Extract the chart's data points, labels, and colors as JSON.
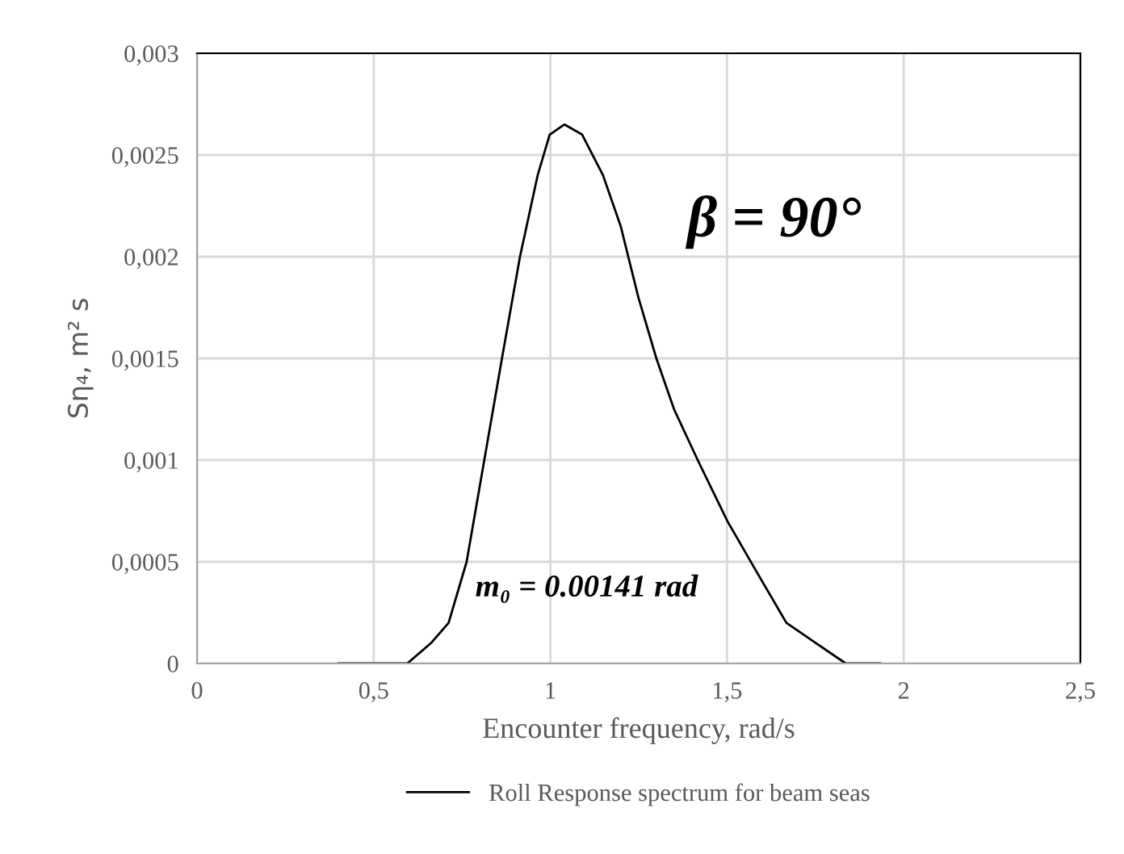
{
  "chart_data": {
    "type": "line",
    "xlabel": "Encounter frequency, rad/s",
    "ylabel": "Sη₄, m² s",
    "annotations": [
      "β = 90°",
      "m₀ = 0.00141 rad"
    ],
    "x": [
      0.4,
      0.595,
      0.662,
      0.712,
      0.763,
      0.813,
      0.863,
      0.914,
      0.964,
      0.998,
      1.04,
      1.09,
      1.149,
      1.199,
      1.249,
      1.3,
      1.35,
      1.417,
      1.501,
      1.584,
      1.668,
      1.752,
      1.836,
      1.933
    ],
    "series": [
      {
        "name": "Roll Response spectrum for beam seas",
        "color": "#000000",
        "values": [
          0,
          0,
          0.0001,
          0.0002,
          0.0005,
          0.001,
          0.0015,
          0.002,
          0.0024,
          0.0026,
          0.00265,
          0.0026,
          0.0024,
          0.00215,
          0.0018,
          0.0015,
          0.00125,
          0.001,
          0.0007,
          0.00045,
          0.0002,
          0.0001,
          0,
          0
        ]
      }
    ],
    "xlim": [
      0,
      2.5
    ],
    "xticks": [
      0,
      {
        "value": 0.5,
        "label": "0,5"
      },
      1,
      {
        "value": 1.5,
        "label": "1,5"
      },
      2,
      {
        "value": 2.5,
        "label": "2,5"
      }
    ],
    "ylim": [
      0,
      0.003
    ],
    "yticks": [
      0,
      {
        "value": 0.0005,
        "label": "0,0005"
      },
      {
        "value": 0.001,
        "label": "0,001"
      },
      {
        "value": 0.0015,
        "label": "0,0015"
      },
      {
        "value": 0.002,
        "label": "0,002"
      },
      {
        "value": 0.0025,
        "label": "0,0025"
      },
      {
        "value": 0.003,
        "label": "0,003"
      }
    ],
    "grid": true,
    "legend": "bottom",
    "marker": "none",
    "line_style": "solid"
  }
}
